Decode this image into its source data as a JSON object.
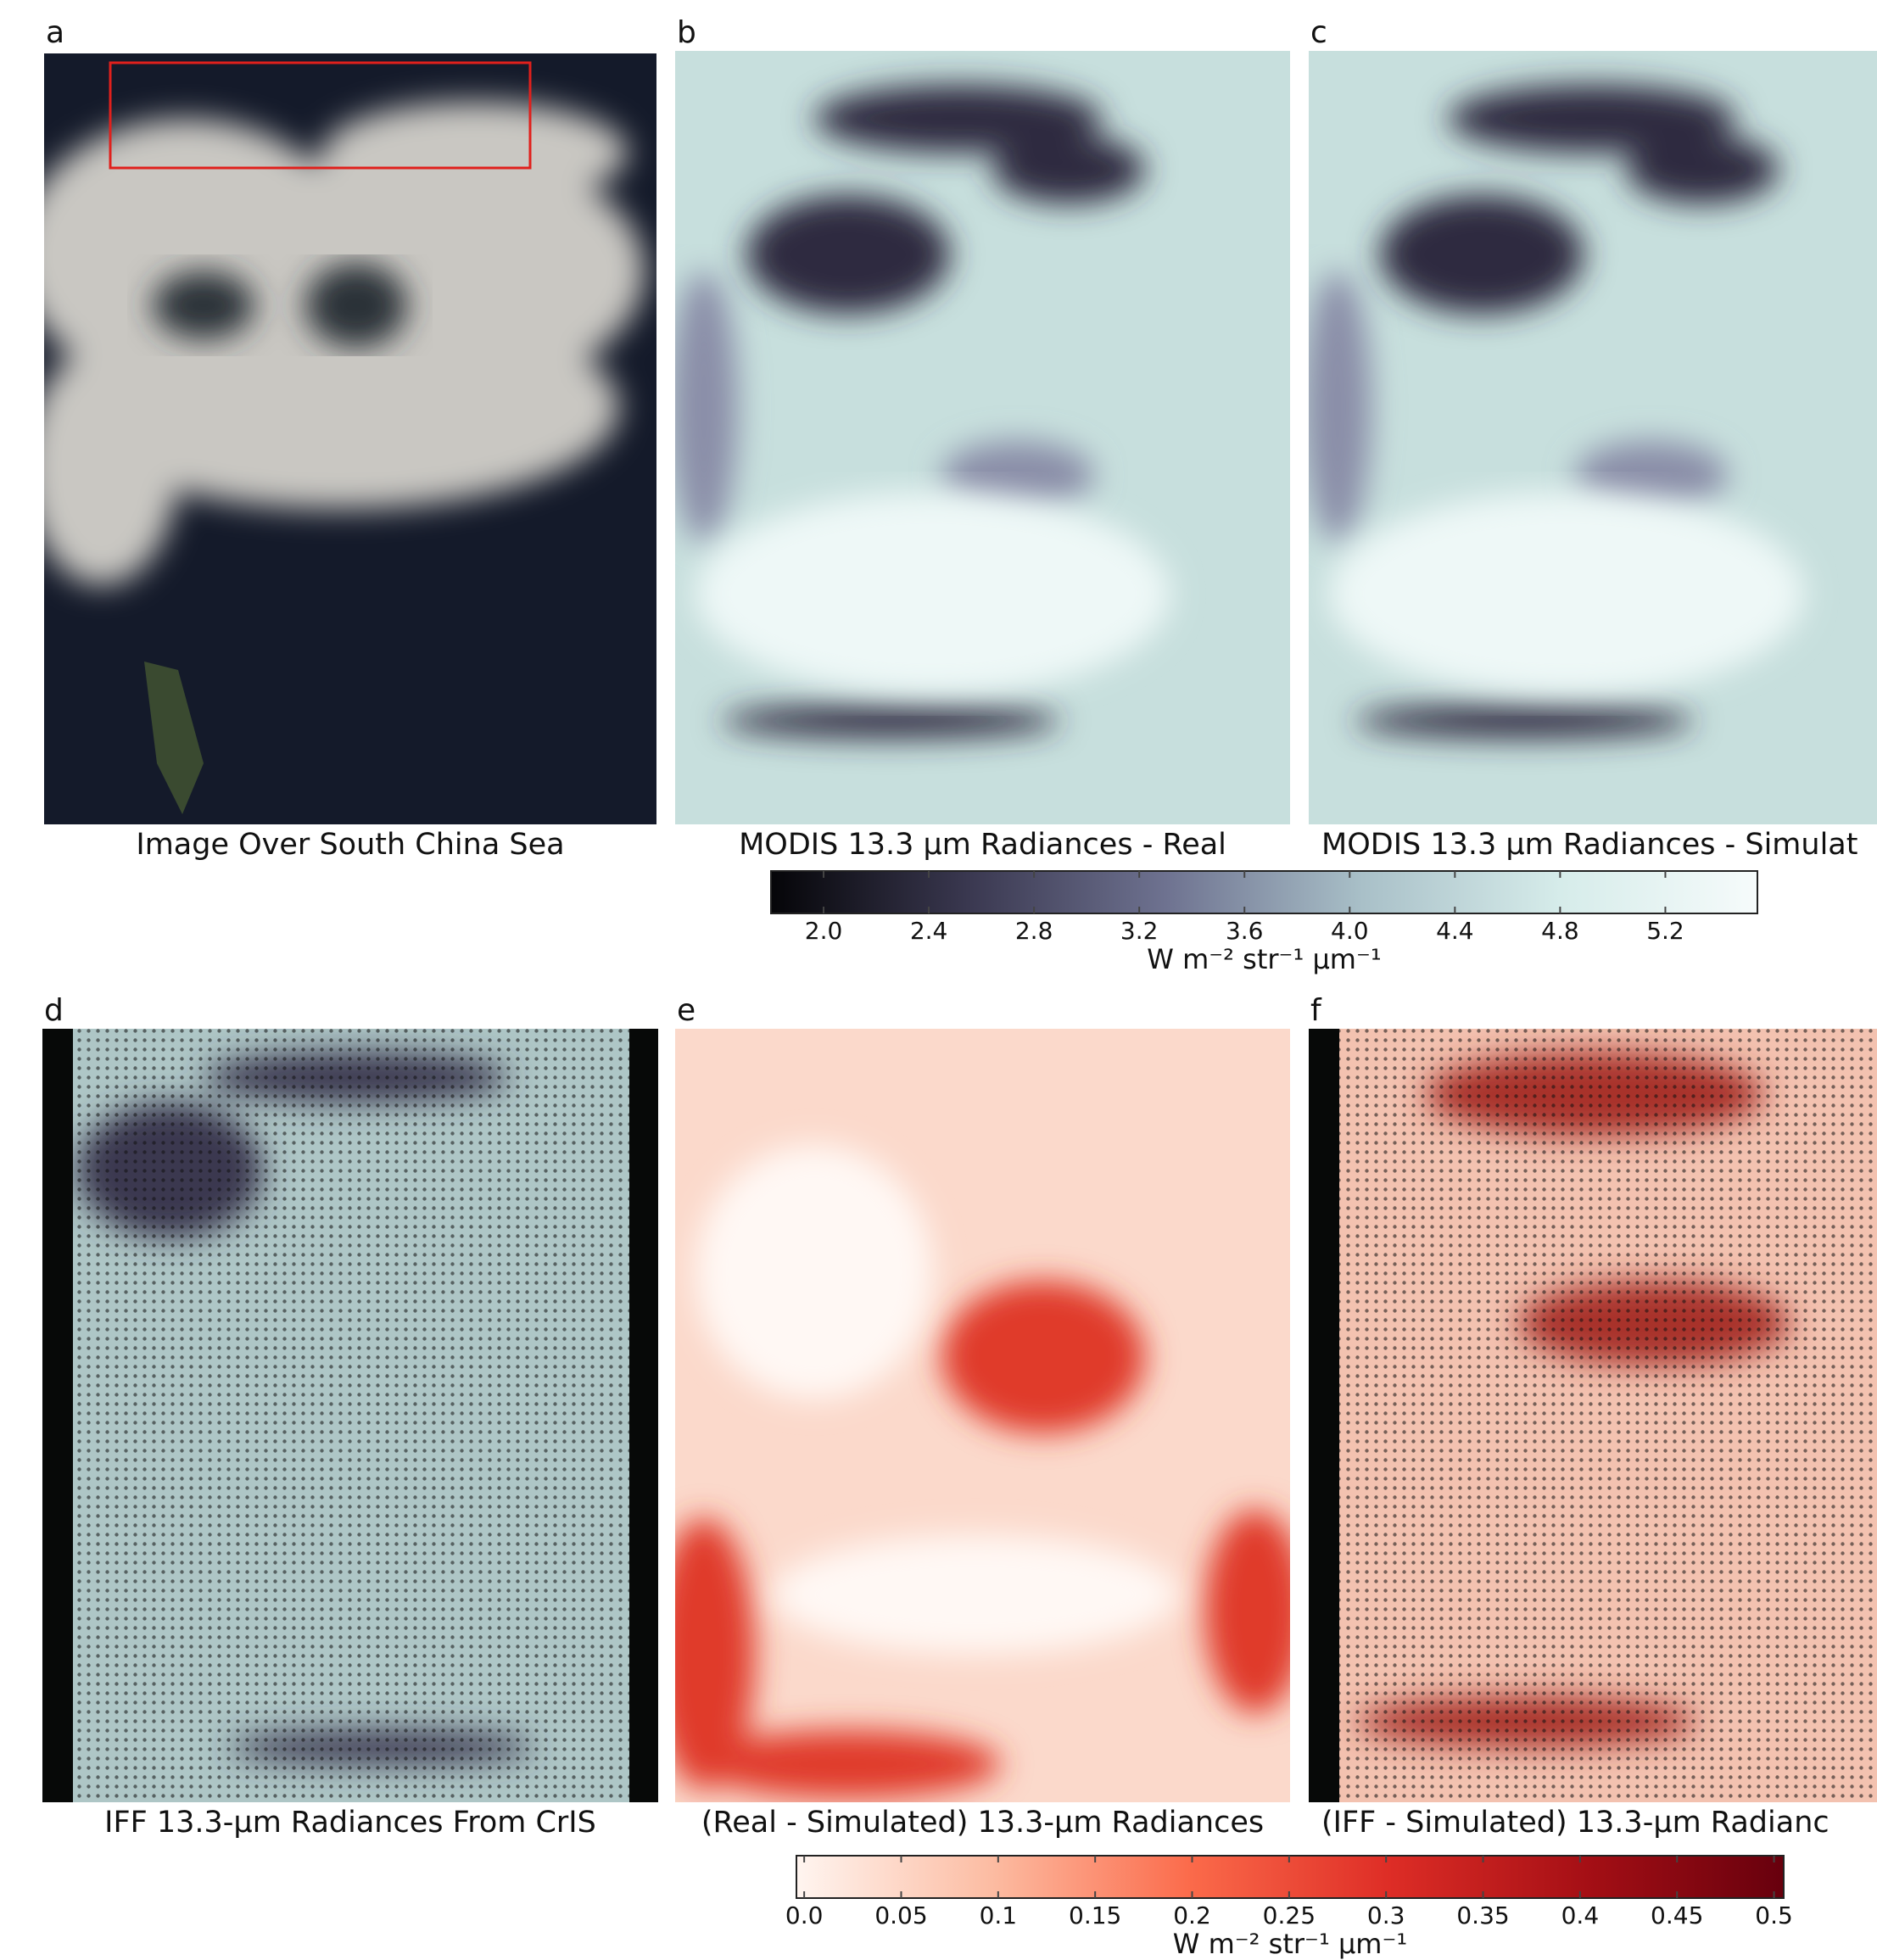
{
  "panels": [
    {
      "label": "a",
      "caption": "Image Over South China Sea"
    },
    {
      "label": "b",
      "caption": "MODIS 13.3 μm Radiances - Real"
    },
    {
      "label": "c",
      "caption": "MODIS 13.3 μm Radiances - Simulat"
    },
    {
      "label": "d",
      "caption": "IFF  13.3-μm Radiances From CrIS"
    },
    {
      "label": "e",
      "caption": "(Real - Simulated) 13.3-μm Radiances"
    },
    {
      "label": "f",
      "caption": "(IFF - Simulated) 13.3-μm Radianc"
    }
  ],
  "colorbars": [
    {
      "label": "W m⁻² str⁻¹ μm⁻¹",
      "lim": [
        1.8,
        5.55
      ],
      "colors": [
        "#050508",
        "#3a3850",
        "#6e7290",
        "#a9c0c8",
        "#d6ecea",
        "#f6fbfb"
      ],
      "ticks": [
        {
          "value": 2,
          "label": "2.0"
        },
        2.4,
        2.8,
        3.2,
        3.6,
        {
          "value": 4,
          "label": "4.0"
        },
        4.4,
        4.8,
        5.2
      ]
    },
    {
      "label": "W m⁻² str⁻¹ μm⁻¹",
      "lim": [
        -0.004,
        0.505
      ],
      "colors": [
        "#fff5f0",
        "#fcbba1",
        "#fb6a4a",
        "#de2d26",
        "#a50f15",
        "#67000d"
      ],
      "ticks": [
        {
          "value": 0,
          "label": "0.0"
        },
        0.05,
        0.1,
        0.15,
        0.2,
        0.25,
        0.3,
        0.35,
        0.4,
        0.45,
        0.5
      ]
    }
  ]
}
